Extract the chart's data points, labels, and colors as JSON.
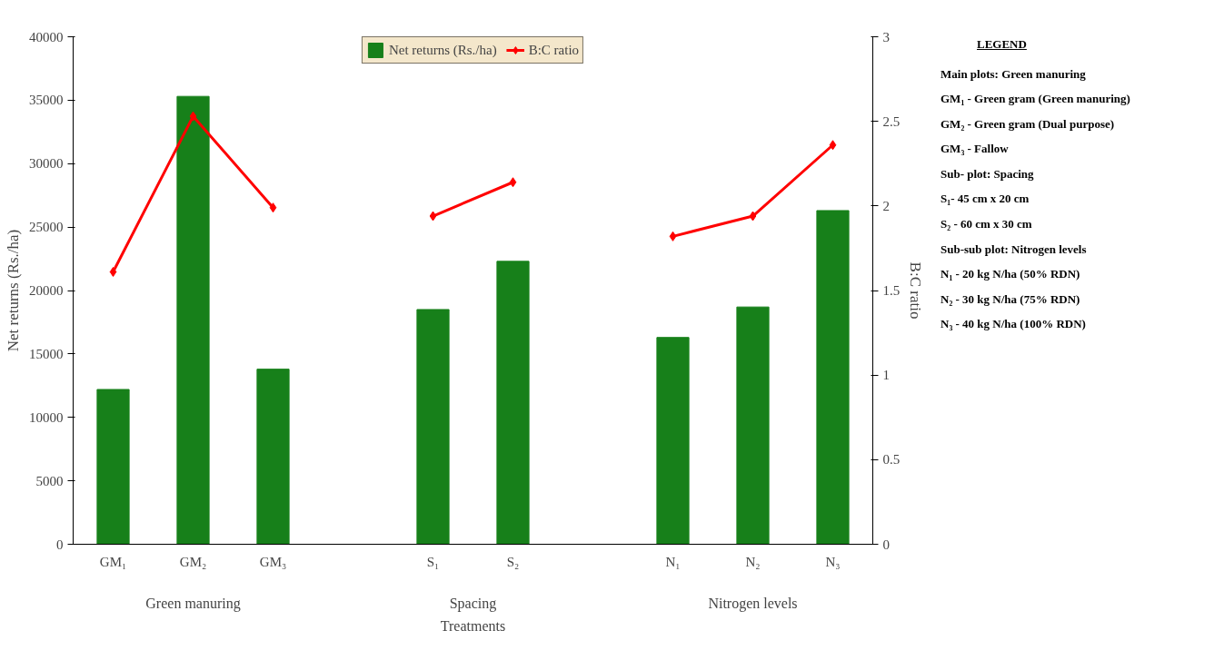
{
  "chart_data": {
    "type": "bar",
    "categories": [
      "GM₁",
      "GM₂",
      "GM₃",
      null,
      "S₁",
      "S₂",
      null,
      "N₁",
      "N₂",
      "N₃"
    ],
    "xlabel": "Treatments",
    "ylabel": "Net returns (Rs./ha)",
    "y2label": "B:C ratio",
    "ylim": [
      0,
      40000
    ],
    "yticks": [
      0,
      5000,
      10000,
      15000,
      20000,
      25000,
      30000,
      35000,
      40000
    ],
    "y2lim": [
      0,
      3
    ],
    "y2ticks": [
      0,
      0.5,
      1,
      1.5,
      2,
      2.5,
      3
    ],
    "series": [
      {
        "name": "Net returns (Rs./ha)",
        "color": "#17801a",
        "values": [
          12200,
          35300,
          13800,
          null,
          18500,
          22300,
          null,
          16300,
          18700,
          26300
        ]
      },
      {
        "name": "B:C ratio",
        "type": "line",
        "axis": "y2",
        "color": "#ff0000",
        "marker": "diamond",
        "values": [
          1.61,
          2.53,
          1.99,
          null,
          1.94,
          2.14,
          null,
          1.82,
          1.94,
          2.36
        ]
      }
    ],
    "legend": "top",
    "grid": false,
    "annotations": [
      "Green manuring",
      "Spacing",
      "Nitrogen levels",
      "LEGEND",
      "Main plots: Green manuring",
      "GM₁ - Green gram (Green manuring)",
      "GM₂ - Green gram (Dual purpose)",
      "GM₃ - Fallow",
      "Sub- plot: Spacing",
      "S₁- 45 cm x 20 cm",
      "S₂ - 60 cm x 30 cm",
      "Sub-sub plot: Nitrogen levels",
      "N₁ - 20 kg N/ha (50% RDN)",
      "N₂ - 30 kg N/ha (75% RDN)",
      "N₃ - 40 kg N/ha (100% RDN)"
    ]
  }
}
